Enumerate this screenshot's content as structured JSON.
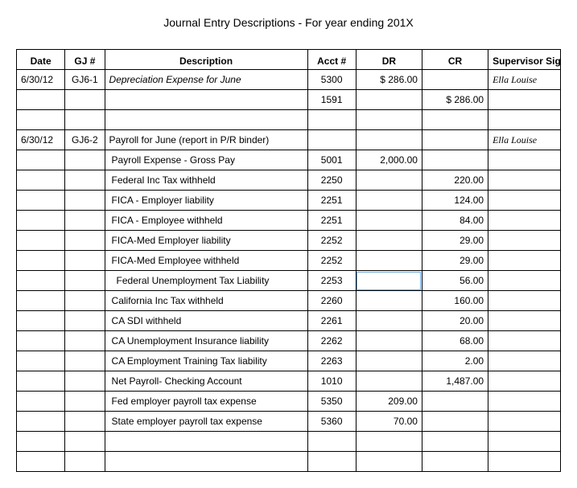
{
  "title": "Journal Entry Descriptions - For year ending 201X",
  "headers": {
    "date": "Date",
    "gj": "GJ #",
    "desc": "Description",
    "acct": "Acct #",
    "dr": "DR",
    "cr": "CR",
    "sig": "Supervisor Signature"
  },
  "rows": [
    {
      "date": "6/30/12",
      "gj": "GJ6-1",
      "desc": "Depreciation Expense for June",
      "descItalic": true,
      "acct": "5300",
      "dr": "$   286.00",
      "cr": "",
      "sig": "Ella Louise"
    },
    {
      "date": "",
      "gj": "",
      "desc": "",
      "acct": "1591",
      "dr": "",
      "cr": "$   286.00",
      "sig": ""
    },
    {
      "date": "",
      "gj": "",
      "desc": "",
      "acct": "",
      "dr": "",
      "cr": "",
      "sig": ""
    },
    {
      "date": "6/30/12",
      "gj": "GJ6-2",
      "desc": "Payroll for June (report in P/R binder)",
      "acct": "",
      "dr": "",
      "cr": "",
      "sig": "Ella Louise"
    },
    {
      "date": "",
      "gj": "",
      "desc": "Payroll Expense - Gross Pay",
      "pad": 1,
      "acct": "5001",
      "dr": "2,000.00",
      "cr": "",
      "sig": ""
    },
    {
      "date": "",
      "gj": "",
      "desc": "Federal Inc Tax withheld",
      "pad": 1,
      "acct": "2250",
      "dr": "",
      "cr": "220.00",
      "sig": ""
    },
    {
      "date": "",
      "gj": "",
      "desc": "FICA - Employer liability",
      "pad": 1,
      "acct": "2251",
      "dr": "",
      "cr": "124.00",
      "sig": ""
    },
    {
      "date": "",
      "gj": "",
      "desc": "FICA - Employee withheld",
      "pad": 1,
      "acct": "2251",
      "dr": "",
      "cr": "84.00",
      "sig": ""
    },
    {
      "date": "",
      "gj": "",
      "desc": "FICA-Med Employer liability",
      "pad": 1,
      "acct": "2252",
      "dr": "",
      "cr": "29.00",
      "sig": ""
    },
    {
      "date": "",
      "gj": "",
      "desc": "FICA-Med Employee withheld",
      "pad": 1,
      "acct": "2252",
      "dr": "",
      "cr": "29.00",
      "sig": ""
    },
    {
      "date": "",
      "gj": "",
      "desc": "Federal Unemployment Tax Liability",
      "pad": 2,
      "acct": "2253",
      "dr": "",
      "cr": "56.00",
      "sig": "",
      "selectedDr": true
    },
    {
      "date": "",
      "gj": "",
      "desc": "California Inc Tax withheld",
      "pad": 1,
      "acct": "2260",
      "dr": "",
      "cr": "160.00",
      "sig": ""
    },
    {
      "date": "",
      "gj": "",
      "desc": "CA SDI withheld",
      "pad": 1,
      "acct": "2261",
      "dr": "",
      "cr": "20.00",
      "sig": ""
    },
    {
      "date": "",
      "gj": "",
      "desc": "CA Unemployment Insurance liability",
      "pad": 1,
      "acct": "2262",
      "dr": "",
      "cr": "68.00",
      "sig": ""
    },
    {
      "date": "",
      "gj": "",
      "desc": "CA Employment Training Tax liability",
      "pad": 1,
      "acct": "2263",
      "dr": "",
      "cr": "2.00",
      "sig": ""
    },
    {
      "date": "",
      "gj": "",
      "desc": "Net Payroll- Checking Account",
      "pad": 1,
      "acct": "1010",
      "dr": "",
      "cr": "1,487.00",
      "sig": ""
    },
    {
      "date": "",
      "gj": "",
      "desc": "Fed employer payroll tax expense",
      "pad": 1,
      "acct": "5350",
      "dr": "209.00",
      "cr": "",
      "sig": ""
    },
    {
      "date": "",
      "gj": "",
      "desc": "State employer payroll tax expense",
      "pad": 1,
      "acct": "5360",
      "dr": "70.00",
      "cr": "",
      "sig": ""
    },
    {
      "date": "",
      "gj": "",
      "desc": "",
      "acct": "",
      "dr": "",
      "cr": "",
      "sig": ""
    },
    {
      "date": "",
      "gj": "",
      "desc": "",
      "acct": "",
      "dr": "",
      "cr": "",
      "sig": ""
    }
  ]
}
